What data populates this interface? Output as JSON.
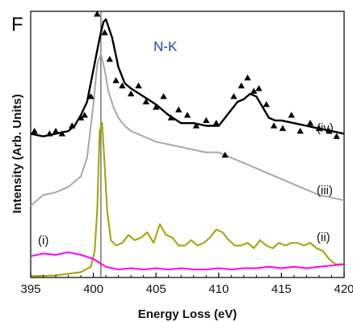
{
  "chart_data": {
    "type": "line",
    "panel_label": "F",
    "title": "N-K",
    "xlabel": "Energy Loss (eV)",
    "ylabel": "Intensity (Arb. Units)",
    "xlim": [
      395,
      420
    ],
    "ylim": [
      0,
      1
    ],
    "x_ticks": [
      395,
      400,
      405,
      410,
      415,
      420
    ],
    "y_ticks_shown": false,
    "vline_x": 400.6,
    "colors": {
      "title": "#1f3fbf",
      "iv": "#000000",
      "iii": "#a8a8a8",
      "ii": "#a6a000",
      "i": "#ff00ff",
      "vline": "#555555"
    },
    "series": [
      {
        "name": "(i)",
        "label_position": "left",
        "x": [
          395,
          396,
          397,
          398,
          399,
          400,
          401,
          402,
          403,
          404,
          405,
          406,
          407,
          408,
          409,
          410,
          411,
          412,
          413,
          414,
          415,
          416,
          417,
          418,
          419,
          420
        ],
        "y": [
          0.08,
          0.09,
          0.085,
          0.095,
          0.085,
          0.07,
          0.04,
          0.03,
          0.035,
          0.03,
          0.035,
          0.03,
          0.035,
          0.03,
          0.03,
          0.035,
          0.03,
          0.035,
          0.035,
          0.04,
          0.035,
          0.04,
          0.035,
          0.04,
          0.045,
          0.05
        ]
      },
      {
        "name": "(ii)",
        "label_position": "right",
        "x": [
          395,
          397,
          399,
          399.8,
          400.1,
          400.3,
          400.5,
          400.7,
          400.9,
          401.1,
          401.4,
          401.8,
          402.3,
          402.8,
          403.3,
          403.8,
          404.3,
          404.8,
          405.3,
          405.8,
          406.3,
          406.8,
          407.3,
          407.8,
          408.3,
          408.8,
          409.3,
          409.8,
          410.3,
          410.8,
          411.3,
          411.8,
          412.3,
          412.8,
          413.3,
          413.8,
          414.3,
          414.8,
          415.3,
          415.8,
          416.3,
          416.8,
          417.3,
          417.8,
          418.3,
          418.8,
          419.3,
          420
        ],
        "y": [
          0.005,
          0.008,
          0.02,
          0.04,
          0.1,
          0.25,
          0.55,
          0.58,
          0.42,
          0.25,
          0.14,
          0.12,
          0.13,
          0.16,
          0.14,
          0.15,
          0.17,
          0.13,
          0.2,
          0.16,
          0.15,
          0.12,
          0.12,
          0.14,
          0.12,
          0.13,
          0.15,
          0.18,
          0.17,
          0.14,
          0.12,
          0.12,
          0.13,
          0.11,
          0.14,
          0.12,
          0.11,
          0.13,
          0.12,
          0.13,
          0.13,
          0.12,
          0.13,
          0.11,
          0.1,
          0.07,
          0.05,
          0.05
        ]
      },
      {
        "name": "(iii)",
        "label_position": "right",
        "x": [
          395,
          396,
          397,
          398,
          399,
          399.5,
          400,
          400.3,
          400.6,
          400.9,
          401.2,
          401.6,
          402,
          402.5,
          403,
          404,
          405,
          406,
          407,
          408,
          409,
          410,
          411,
          412,
          413,
          414,
          415,
          416,
          417,
          418,
          419,
          420
        ],
        "y": [
          0.27,
          0.31,
          0.32,
          0.34,
          0.38,
          0.45,
          0.65,
          0.8,
          0.84,
          0.78,
          0.7,
          0.64,
          0.6,
          0.57,
          0.55,
          0.53,
          0.51,
          0.5,
          0.49,
          0.48,
          0.47,
          0.47,
          0.45,
          0.43,
          0.41,
          0.39,
          0.37,
          0.35,
          0.33,
          0.31,
          0.3,
          0.29
        ]
      },
      {
        "name": "(iv)",
        "label_position": "right",
        "x": [
          395,
          396,
          397,
          398,
          398.5,
          399,
          399.5,
          400,
          400.5,
          400.8,
          401,
          401.5,
          402,
          402.5,
          403,
          404,
          405,
          406,
          407,
          408,
          409,
          410,
          411,
          411.5,
          412,
          412.5,
          413,
          413.5,
          414,
          414.5,
          415,
          416,
          417,
          418,
          419,
          420
        ],
        "y": [
          0.54,
          0.53,
          0.54,
          0.55,
          0.57,
          0.61,
          0.66,
          0.78,
          0.9,
          0.96,
          0.97,
          0.9,
          0.79,
          0.73,
          0.71,
          0.68,
          0.65,
          0.61,
          0.58,
          0.58,
          0.57,
          0.57,
          0.63,
          0.66,
          0.67,
          0.69,
          0.68,
          0.64,
          0.6,
          0.59,
          0.59,
          0.58,
          0.57,
          0.56,
          0.55,
          0.54
        ]
      },
      {
        "name": "(iv) data points",
        "marker": "triangle",
        "x": [
          395.3,
          396.5,
          397,
          397.5,
          398.3,
          399,
          399.3,
          399.8,
          400.3,
          400.9,
          401.3,
          401.8,
          402.3,
          403,
          403.6,
          404.2,
          405,
          405.6,
          406.2,
          406.8,
          407.5,
          408.2,
          409,
          409.8,
          410.5,
          411.2,
          411.8,
          412.3,
          412.8,
          413.2,
          413.8,
          414.4,
          415.1,
          415.8,
          416.5,
          417.3,
          418,
          418.8,
          419.4
        ],
        "y": [
          0.55,
          0.54,
          0.55,
          0.54,
          0.57,
          0.6,
          0.61,
          0.68,
          0.99,
          0.92,
          0.82,
          0.74,
          0.72,
          0.69,
          0.72,
          0.66,
          0.64,
          0.68,
          0.6,
          0.63,
          0.61,
          0.57,
          0.59,
          0.58,
          0.46,
          0.68,
          0.72,
          0.75,
          0.7,
          0.71,
          0.65,
          0.57,
          0.56,
          0.61,
          0.55,
          0.58,
          0.56,
          0.55,
          0.53
        ]
      }
    ]
  }
}
